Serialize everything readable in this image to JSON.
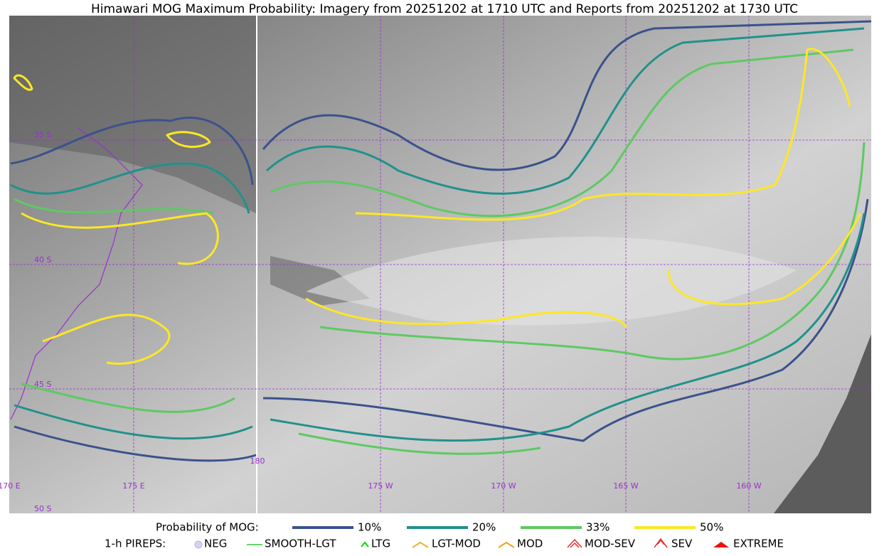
{
  "title": "Himawari MOG Maximum Probability: Imagery from 20251202 at 1710 UTC and Reports from 20251202 at 1730 UTC",
  "lat_labels": [
    "35 S",
    "40 S",
    "45 S",
    "50 S"
  ],
  "lon_labels": [
    "170 E",
    "175 E",
    "180",
    "175 W",
    "170 W",
    "165 W",
    "160 W"
  ],
  "legend": {
    "label": "Probability of MOG:",
    "levels": [
      {
        "label": "10%",
        "color": "#3b528b"
      },
      {
        "label": "20%",
        "color": "#21918c"
      },
      {
        "label": "33%",
        "color": "#5ec962"
      },
      {
        "label": "50%",
        "color": "#fde725"
      }
    ]
  },
  "pireps": {
    "label": "1-h PIREPS:",
    "items": [
      "NEG",
      "SMOOTH-LGT",
      "LTG",
      "LGT-MOD",
      "MOD",
      "MOD-SEV",
      "SEV",
      "EXTREME"
    ]
  }
}
